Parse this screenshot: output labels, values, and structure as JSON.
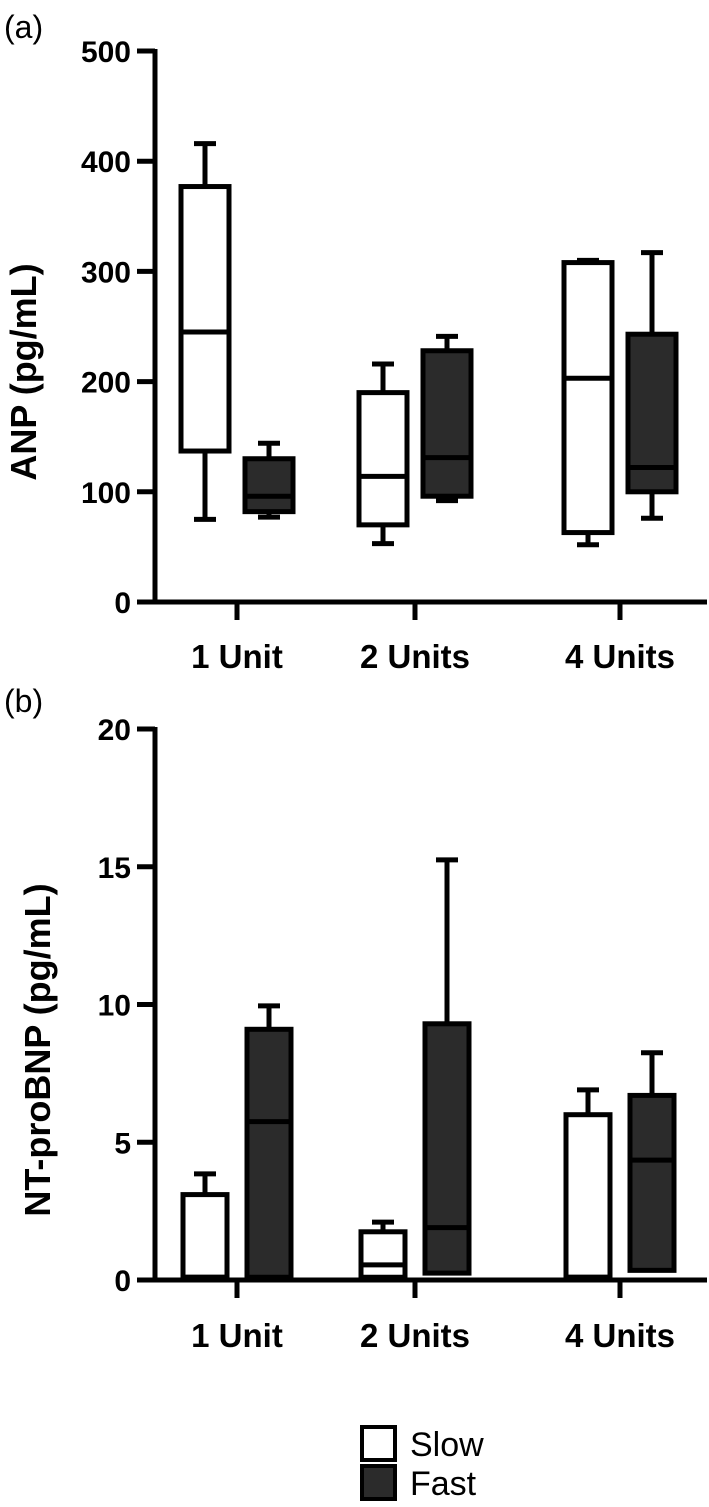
{
  "colors": {
    "slow": "#ffffff",
    "fast": "#2b2b2b",
    "stroke": "#000000"
  },
  "legend": [
    {
      "name": "Slow",
      "color": "#ffffff"
    },
    {
      "name": "Fast",
      "color": "#2b2b2b"
    }
  ],
  "chart_data": [
    {
      "type": "box",
      "panel_label": "(a)",
      "ylabel": "ANP (pg/mL)",
      "ylim": [
        0,
        500
      ],
      "yticks": [
        0,
        100,
        200,
        300,
        400,
        500
      ],
      "categories": [
        "1 Unit",
        "2 Units",
        "4 Units"
      ],
      "series": [
        {
          "name": "Slow",
          "boxes": [
            {
              "min": 75,
              "q1": 137,
              "median": 245,
              "q3": 377,
              "max": 416
            },
            {
              "min": 53,
              "q1": 70,
              "median": 114,
              "q3": 190,
              "max": 216
            },
            {
              "min": 52,
              "q1": 63,
              "median": 203,
              "q3": 308,
              "max": 310
            }
          ]
        },
        {
          "name": "Fast",
          "boxes": [
            {
              "min": 77,
              "q1": 82,
              "median": 96,
              "q3": 130,
              "max": 144
            },
            {
              "min": 92,
              "q1": 96,
              "median": 131,
              "q3": 228,
              "max": 241
            },
            {
              "min": 76,
              "q1": 100,
              "median": 122,
              "q3": 243,
              "max": 317
            }
          ]
        }
      ]
    },
    {
      "type": "box",
      "panel_label": "(b)",
      "ylabel": "NT-proBNP (pg/mL)",
      "ylim": [
        0,
        20
      ],
      "yticks": [
        0,
        5,
        10,
        15,
        20
      ],
      "categories": [
        "1 Unit",
        "2 Units",
        "4 Units"
      ],
      "series": [
        {
          "name": "Slow",
          "boxes": [
            {
              "min": 0.1,
              "q1": 0.1,
              "median": 0.1,
              "q3": 3.1,
              "max": 3.85
            },
            {
              "min": 0.1,
              "q1": 0.1,
              "median": 0.55,
              "q3": 1.75,
              "max": 2.1
            },
            {
              "min": 0.1,
              "q1": 0.1,
              "median": 0.1,
              "q3": 6.0,
              "max": 6.9
            }
          ]
        },
        {
          "name": "Fast",
          "boxes": [
            {
              "min": 0.1,
              "q1": 0.1,
              "median": 5.75,
              "q3": 9.1,
              "max": 9.95
            },
            {
              "min": 0.25,
              "q1": 0.25,
              "median": 1.9,
              "q3": 9.3,
              "max": 15.25
            },
            {
              "min": 0.35,
              "q1": 0.35,
              "median": 4.35,
              "q3": 6.7,
              "max": 8.25
            }
          ]
        }
      ]
    }
  ]
}
